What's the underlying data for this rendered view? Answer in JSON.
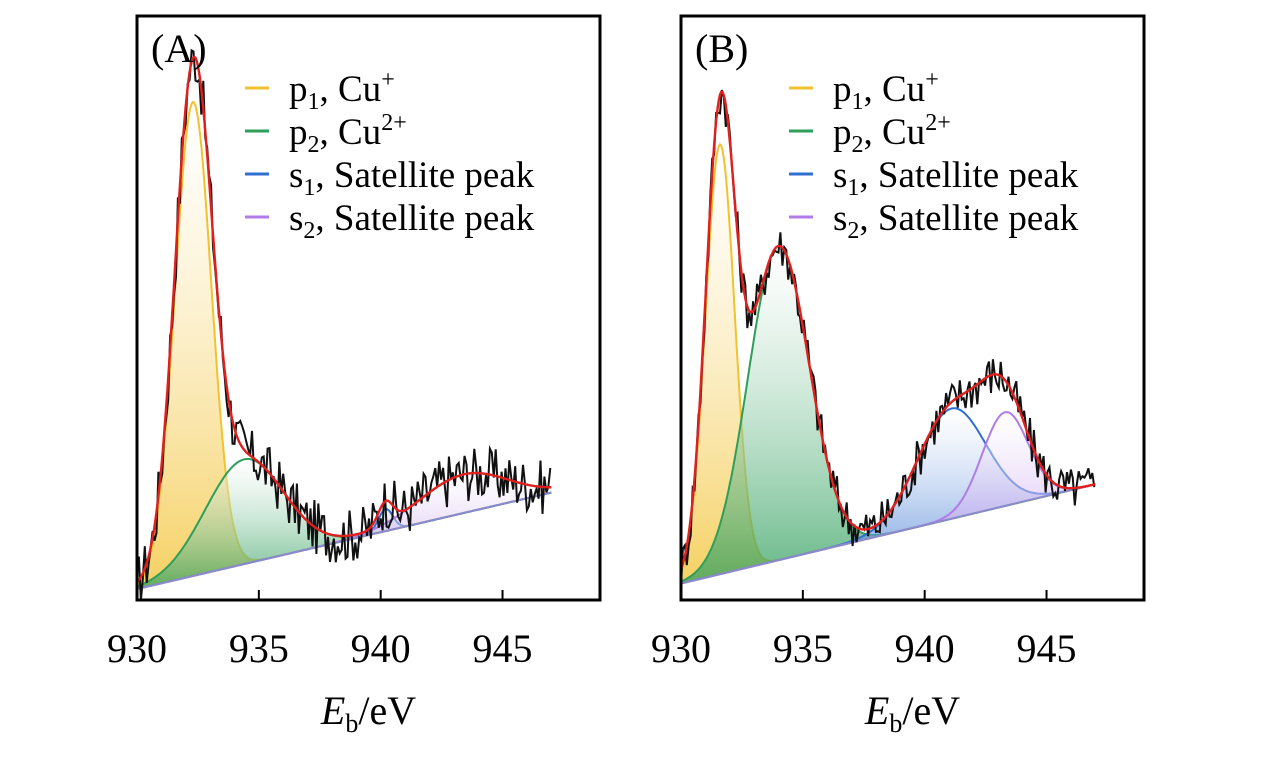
{
  "chart_data": [
    {
      "type": "line",
      "panel_label": "(A)",
      "xlabel_main": "E",
      "xlabel_sub": "b",
      "xlabel_unit": "/eV",
      "ylabel": "",
      "xlim": [
        930,
        949
      ],
      "ylim": [
        0,
        1.06
      ],
      "xticks": [
        "930",
        "935",
        "940",
        "945"
      ],
      "legend_position": "top-right",
      "legend": [
        {
          "symbol": "p",
          "sub": "1",
          "text": ", Cu",
          "sup": "+",
          "color": "#f2c12e"
        },
        {
          "symbol": "p",
          "sub": "2",
          "text": ", Cu",
          "sup": "2+",
          "color": "#2e9e5b"
        },
        {
          "symbol": "s",
          "sub": "1",
          "text": ", Satellite peak",
          "sup": "",
          "color": "#2f6fd0"
        },
        {
          "symbol": "s",
          "sub": "2",
          "text": ", Satellite peak",
          "sup": "",
          "color": "#b07ce8"
        }
      ],
      "baseline": {
        "x0": 930,
        "y0": 0.02,
        "x1": 947,
        "y1": 0.195
      },
      "peaks": [
        {
          "name": "p1, Cu+",
          "center": 932.3,
          "height": 0.86,
          "width": 0.75,
          "color": "#f2c12e"
        },
        {
          "name": "p2, Cu2+",
          "center": 934.4,
          "height": 0.19,
          "width": 1.6,
          "color": "#2e9e5b"
        },
        {
          "name": "s1, Satellite peak",
          "center": 940.2,
          "height": 0.04,
          "width": 0.3,
          "color": "#2f6fd0"
        },
        {
          "name": "s2, Satellite peak",
          "center": 943.4,
          "height": 0.07,
          "width": 1.8,
          "color": "#b07ce8"
        }
      ],
      "raw_noise": 0.05
    },
    {
      "type": "line",
      "panel_label": "(B)",
      "xlabel_main": "E",
      "xlabel_sub": "b",
      "xlabel_unit": "/eV",
      "ylabel": "",
      "xlim": [
        930,
        949
      ],
      "ylim": [
        0,
        1.06
      ],
      "xticks": [
        "930",
        "935",
        "940",
        "945"
      ],
      "legend_position": "top-right",
      "legend": [
        {
          "symbol": "p",
          "sub": "1",
          "text": ", Cu",
          "sup": "+",
          "color": "#f2c12e"
        },
        {
          "symbol": "p",
          "sub": "2",
          "text": ", Cu",
          "sup": "2+",
          "color": "#2e9e5b"
        },
        {
          "symbol": "s",
          "sub": "1",
          "text": ", Satellite peak",
          "sup": "",
          "color": "#2f6fd0"
        },
        {
          "symbol": "s",
          "sub": "2",
          "text": ", Satellite peak",
          "sup": "",
          "color": "#b07ce8"
        }
      ],
      "baseline": {
        "x0": 930,
        "y0": 0.03,
        "x1": 947,
        "y1": 0.21
      },
      "peaks": [
        {
          "name": "p1, Cu+",
          "center": 931.6,
          "height": 0.78,
          "width": 0.6,
          "color": "#f2c12e"
        },
        {
          "name": "p2, Cu2+",
          "center": 934.0,
          "height": 0.57,
          "width": 1.25,
          "color": "#2e9e5b"
        },
        {
          "name": "s1, Satellite peak",
          "center": 941.1,
          "height": 0.2,
          "width": 1.4,
          "color": "#2f6fd0"
        },
        {
          "name": "s2, Satellite peak",
          "center": 943.3,
          "height": 0.17,
          "width": 0.95,
          "color": "#b07ce8"
        }
      ],
      "raw_noise": 0.04
    }
  ]
}
